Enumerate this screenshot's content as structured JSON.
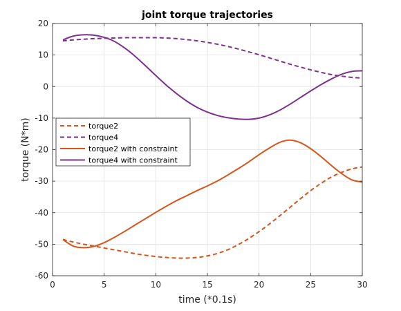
{
  "chart_data": {
    "type": "line",
    "title": "joint torque trajectories",
    "xlabel": "time (*0.1s)",
    "ylabel": "torque (N*m)",
    "xlim": [
      0,
      30
    ],
    "ylim": [
      -60,
      20
    ],
    "xticks": [
      0,
      5,
      10,
      15,
      20,
      25,
      30
    ],
    "yticks": [
      -60,
      -50,
      -40,
      -30,
      -20,
      -10,
      0,
      10,
      20
    ],
    "grid": true,
    "legend_position": "middle-left",
    "series": [
      {
        "name": "torque2",
        "color": "#d95319",
        "style": "dashed",
        "x": [
          1,
          2,
          3,
          4,
          5,
          6,
          7,
          8,
          9,
          10,
          11,
          12,
          13,
          14,
          15,
          16,
          17,
          18,
          19,
          20,
          21,
          22,
          23,
          24,
          25,
          26,
          27,
          28,
          29,
          30
        ],
        "y": [
          -48.5,
          -49.3,
          -50.0,
          -50.6,
          -51.2,
          -51.8,
          -52.4,
          -53.0,
          -53.5,
          -53.9,
          -54.2,
          -54.4,
          -54.4,
          -54.2,
          -53.7,
          -52.9,
          -51.7,
          -50.1,
          -48.2,
          -46.0,
          -43.6,
          -41.0,
          -38.3,
          -35.6,
          -33.0,
          -30.7,
          -28.7,
          -27.2,
          -26.1,
          -25.5
        ]
      },
      {
        "name": "torque4",
        "color": "#7e2f8e",
        "style": "dashed",
        "x": [
          1,
          2,
          3,
          4,
          5,
          6,
          7,
          8,
          9,
          10,
          11,
          12,
          13,
          14,
          15,
          16,
          17,
          18,
          19,
          20,
          21,
          22,
          23,
          24,
          25,
          26,
          27,
          28,
          29,
          30
        ],
        "y": [
          14.5,
          14.8,
          15.0,
          15.2,
          15.3,
          15.4,
          15.5,
          15.5,
          15.5,
          15.5,
          15.4,
          15.2,
          14.9,
          14.5,
          14.0,
          13.4,
          12.7,
          11.9,
          11.0,
          10.1,
          9.1,
          8.1,
          7.1,
          6.2,
          5.3,
          4.5,
          3.8,
          3.3,
          2.9,
          2.7
        ]
      },
      {
        "name": "torque2 with constraint",
        "color": "#d95319",
        "style": "solid",
        "x": [
          1,
          2,
          3,
          4,
          5,
          6,
          7,
          8,
          9,
          10,
          11,
          12,
          13,
          14,
          15,
          16,
          17,
          18,
          19,
          20,
          21,
          22,
          23,
          24,
          25,
          26,
          27,
          28,
          29,
          30
        ],
        "y": [
          -48.5,
          -50.6,
          -51.1,
          -50.7,
          -49.5,
          -47.8,
          -45.9,
          -43.9,
          -41.9,
          -39.9,
          -38.0,
          -36.2,
          -34.6,
          -33.0,
          -31.5,
          -29.9,
          -28.0,
          -26.0,
          -23.9,
          -21.6,
          -19.5,
          -17.7,
          -17.0,
          -17.8,
          -19.7,
          -22.2,
          -25.0,
          -27.6,
          -29.6,
          -30.3
        ]
      },
      {
        "name": "torque4 with constraint",
        "color": "#7e2f8e",
        "style": "solid",
        "x": [
          1,
          2,
          3,
          4,
          5,
          6,
          7,
          8,
          9,
          10,
          11,
          12,
          13,
          14,
          15,
          16,
          17,
          18,
          19,
          20,
          21,
          22,
          23,
          24,
          25,
          26,
          27,
          28,
          29,
          30
        ],
        "y": [
          14.8,
          16.0,
          16.4,
          16.3,
          15.6,
          14.3,
          12.2,
          9.6,
          6.6,
          3.5,
          0.5,
          -2.2,
          -4.6,
          -6.6,
          -8.1,
          -9.2,
          -9.9,
          -10.3,
          -10.4,
          -10.0,
          -9.0,
          -7.5,
          -5.6,
          -3.5,
          -1.4,
          0.6,
          2.4,
          3.9,
          4.8,
          5.0
        ]
      }
    ]
  }
}
